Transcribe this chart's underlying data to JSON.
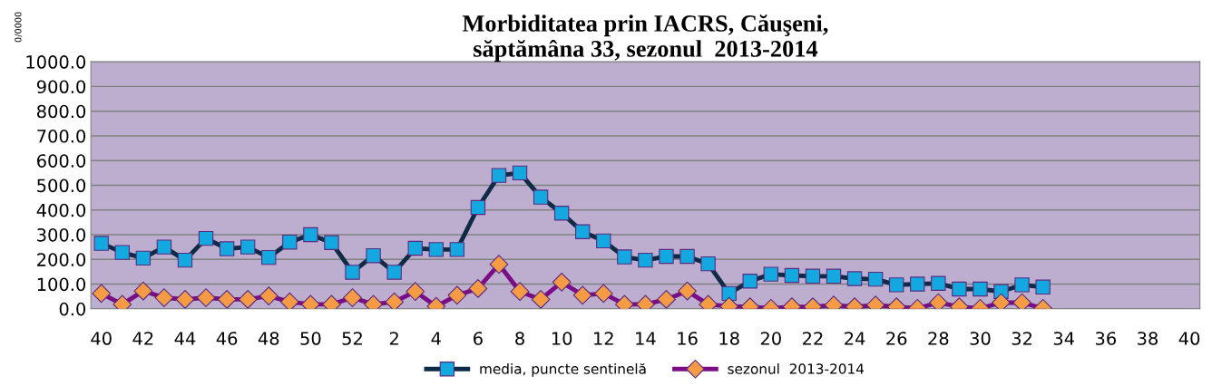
{
  "chart_data": {
    "type": "line",
    "title": "Morbiditatea prin IACRS, Căuşeni,\nsăptămâna 33, sezonul  2013-2014",
    "ylabel": "0/0000",
    "categories": [
      "40",
      null,
      "42",
      null,
      "44",
      null,
      "46",
      null,
      "48",
      null,
      "50",
      null,
      "52",
      null,
      "2",
      null,
      "4",
      null,
      "6",
      null,
      "8",
      null,
      "10",
      null,
      "12",
      null,
      "14",
      null,
      "16",
      null,
      "18",
      null,
      "20",
      null,
      "22",
      null,
      "24",
      null,
      "26",
      null,
      "28",
      null,
      "30",
      null,
      "32",
      null,
      "34",
      null,
      "36",
      null,
      "38",
      null,
      "40"
    ],
    "series": [
      {
        "name": "media, puncte sentinelă",
        "color": "#0f2a44",
        "marker": "square",
        "values": [
          265,
          228,
          205,
          250,
          197,
          285,
          243,
          250,
          208,
          270,
          300,
          268,
          148,
          215,
          148,
          245,
          240,
          240,
          410,
          540,
          550,
          452,
          387,
          312,
          275,
          210,
          197,
          212,
          212,
          182,
          62,
          112,
          140,
          135,
          132,
          132,
          122,
          120,
          97,
          100,
          103,
          80,
          80,
          70,
          97,
          88,
          null,
          null,
          null,
          null,
          null,
          null,
          null
        ]
      },
      {
        "name": "sezonul  2013-2014",
        "color": "#7b0c86",
        "marker": "diamond",
        "values": [
          62,
          18,
          72,
          45,
          38,
          45,
          38,
          38,
          52,
          28,
          18,
          18,
          45,
          18,
          28,
          70,
          10,
          55,
          82,
          180,
          70,
          38,
          108,
          55,
          62,
          18,
          18,
          38,
          72,
          18,
          10,
          8,
          2,
          8,
          8,
          15,
          8,
          15,
          8,
          2,
          25,
          8,
          2,
          25,
          25,
          2,
          null,
          null,
          null,
          null,
          null,
          null,
          null
        ]
      }
    ],
    "ylim": [
      0,
      1000
    ],
    "yticks": [
      {
        "value": 0,
        "label": "0.0"
      },
      {
        "value": 100,
        "label": "100.0"
      },
      {
        "value": 200,
        "label": "200.0"
      },
      {
        "value": 300,
        "label": "300.0"
      },
      {
        "value": 400,
        "label": "400.0"
      },
      {
        "value": 500,
        "label": "500.0"
      },
      {
        "value": 600,
        "label": "600.0"
      },
      {
        "value": 700,
        "label": "700.0"
      },
      {
        "value": 800,
        "label": "800.0"
      },
      {
        "value": 900,
        "label": "900.0"
      },
      {
        "value": 1000,
        "label": "1000.0"
      }
    ],
    "grid": "y",
    "legend": "bottom",
    "line_style": "solid"
  }
}
